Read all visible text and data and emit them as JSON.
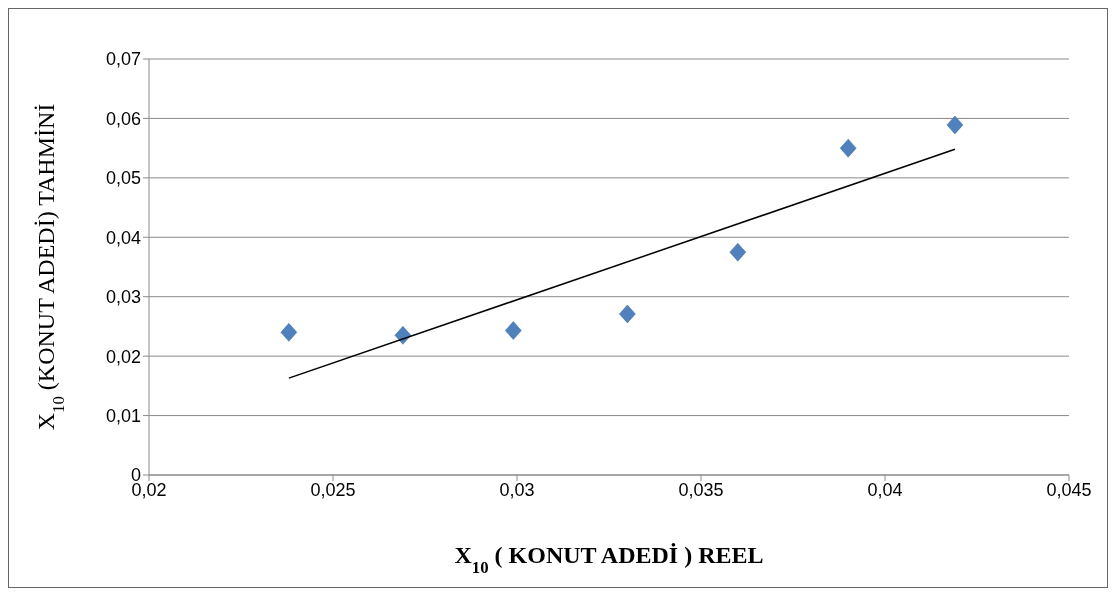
{
  "chart_data": {
    "type": "scatter",
    "xlabel": "X$_{10}$ ( KONUT ADEDİ ) REEL",
    "ylabel": "X$_{10}$ (KONUT ADEDİ) TAHMİNİ",
    "series": [
      {
        "type": "scatter",
        "color": "#4f81bd",
        "marker": "diamond",
        "x": [
          0.0238,
          0.0269,
          0.0299,
          0.033,
          0.036,
          0.039,
          0.0419
        ],
        "values": [
          0.024,
          0.0235,
          0.0243,
          0.0271,
          0.0375,
          0.055,
          0.0589
        ]
      },
      {
        "type": "line",
        "color": "#000000",
        "marker": "none",
        "x": [
          0.0238,
          0.0419
        ],
        "values": [
          0.0163,
          0.0548
        ]
      }
    ],
    "xlim": [
      0.02,
      0.045
    ],
    "xticks": [
      {
        "value": 0.02,
        "label": "0,02"
      },
      {
        "value": 0.025,
        "label": "0,025"
      },
      {
        "value": 0.03,
        "label": "0,03"
      },
      {
        "value": 0.035,
        "label": "0,035"
      },
      {
        "value": 0.04,
        "label": "0,04"
      },
      {
        "value": 0.045,
        "label": "0,045"
      }
    ],
    "ylim": [
      0,
      0.07
    ],
    "yticks": [
      0,
      {
        "value": 0.01,
        "label": "0,01"
      },
      {
        "value": 0.02,
        "label": "0,02"
      },
      {
        "value": 0.03,
        "label": "0,03"
      },
      {
        "value": 0.04,
        "label": "0,04"
      },
      {
        "value": 0.05,
        "label": "0,05"
      },
      {
        "value": 0.06,
        "label": "0,06"
      },
      {
        "value": 0.07,
        "label": "0,07"
      }
    ],
    "grid": "y",
    "legend": false
  }
}
